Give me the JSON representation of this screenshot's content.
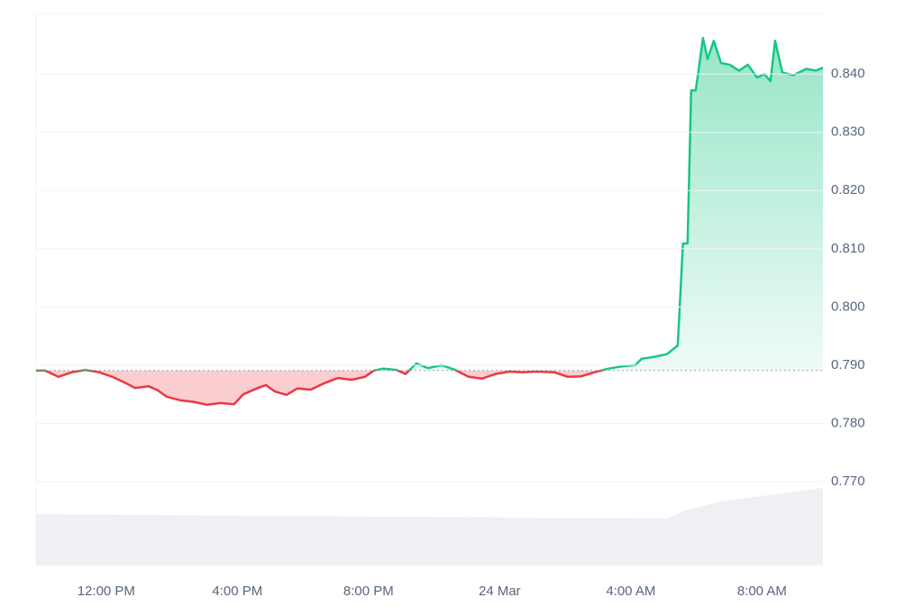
{
  "chart_data": {
    "type": "line",
    "x": [
      9.86,
      10.13,
      10.54,
      10.96,
      11.37,
      11.78,
      12.19,
      12.6,
      12.88,
      13.29,
      13.57,
      13.84,
      14.25,
      14.67,
      15.08,
      15.49,
      15.9,
      16.18,
      16.59,
      16.87,
      17.14,
      17.5,
      17.83,
      18.24,
      18.65,
      19.07,
      19.48,
      19.89,
      20.17,
      20.44,
      20.85,
      21.13,
      21.46,
      21.81,
      22.23,
      22.64,
      23.05,
      23.46,
      23.88,
      24.29,
      24.7,
      25.11,
      25.66,
      26.08,
      26.49,
      26.9,
      27.31,
      27.73,
      28.14,
      28.33,
      28.69,
      29.1,
      29.43,
      29.59,
      29.73,
      29.84,
      29.98,
      30.2,
      30.34,
      30.53,
      30.75,
      31.02,
      31.3,
      31.57,
      31.85,
      32.07,
      32.26,
      32.4,
      32.62,
      32.95,
      33.36,
      33.64,
      33.86
    ],
    "values": [
      0.7891,
      0.7891,
      0.788,
      0.7888,
      0.7892,
      0.7888,
      0.788,
      0.7869,
      0.7861,
      0.7864,
      0.7857,
      0.7846,
      0.784,
      0.7837,
      0.7832,
      0.7835,
      0.7833,
      0.785,
      0.786,
      0.7866,
      0.7855,
      0.7849,
      0.786,
      0.7858,
      0.7869,
      0.7878,
      0.7875,
      0.788,
      0.7891,
      0.7894,
      0.7892,
      0.7885,
      0.7903,
      0.7895,
      0.79,
      0.7892,
      0.788,
      0.7877,
      0.7885,
      0.7889,
      0.7888,
      0.7889,
      0.7888,
      0.788,
      0.7881,
      0.7888,
      0.7894,
      0.7898,
      0.79,
      0.7911,
      0.7914,
      0.7919,
      0.7934,
      0.8109,
      0.8109,
      0.8372,
      0.8372,
      0.8462,
      0.8426,
      0.8457,
      0.8419,
      0.8416,
      0.8406,
      0.8416,
      0.8394,
      0.84,
      0.8388,
      0.8457,
      0.8403,
      0.8398,
      0.8409,
      0.8406,
      0.8411
    ],
    "baseline": 0.7891,
    "up_color": "#16c784",
    "down_color": "#ea3943",
    "xlim": [
      9.86,
      33.86
    ],
    "xticks": [
      {
        "value": 12,
        "label": "12:00 PM"
      },
      {
        "value": 16,
        "label": "4:00 PM"
      },
      {
        "value": 20,
        "label": "8:00 PM"
      },
      {
        "value": 24,
        "label": "24 Mar"
      },
      {
        "value": 28,
        "label": "4:00 AM"
      },
      {
        "value": 32,
        "label": "8:00 AM"
      }
    ],
    "ylim": [
      0.7556,
      0.8504
    ],
    "yticks": [
      {
        "value": 0.77,
        "label": "0.770"
      },
      {
        "value": 0.78,
        "label": "0.780"
      },
      {
        "value": 0.79,
        "label": "0.790"
      },
      {
        "value": 0.8,
        "label": "0.800"
      },
      {
        "value": 0.81,
        "label": "0.810"
      },
      {
        "value": 0.82,
        "label": "0.820"
      },
      {
        "value": 0.83,
        "label": "0.830"
      },
      {
        "value": 0.84,
        "label": "0.840"
      }
    ],
    "grid": true
  }
}
